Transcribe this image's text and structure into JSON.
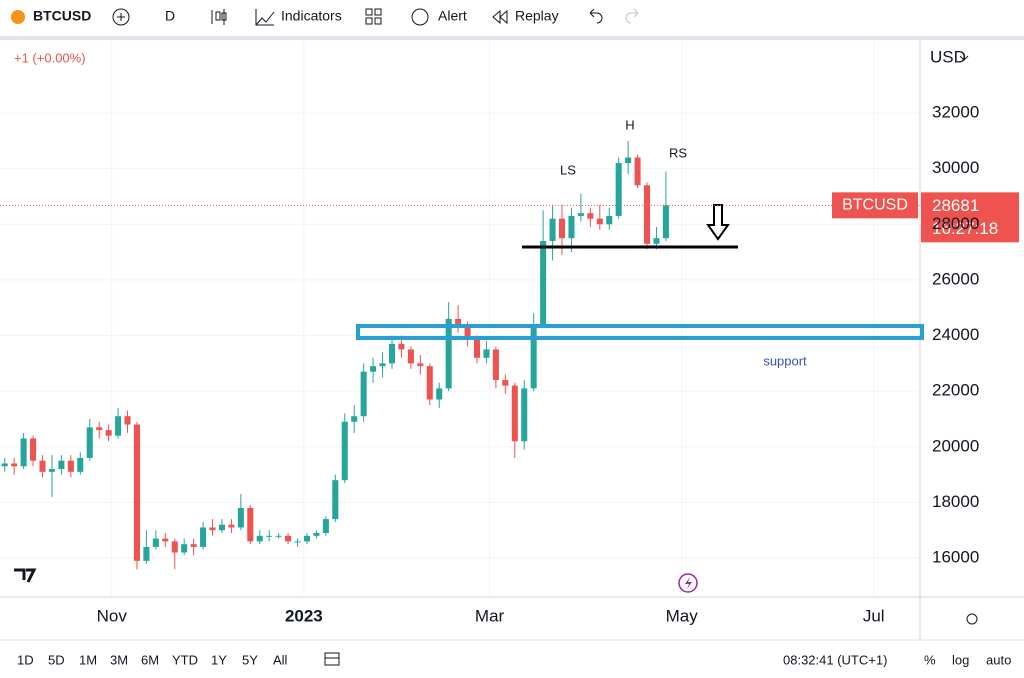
{
  "toolbar": {
    "symbol": "BTCUSD",
    "interval": "D",
    "indicators": "Indicators",
    "alert": "Alert",
    "replay": "Replay"
  },
  "chart_data": {
    "type": "candlestick",
    "change_label": "+1 (+0.00%)",
    "currency": "USD",
    "symbol": "BTCUSD",
    "countdown": "16:27:18",
    "up_color": "#26a69a",
    "down_color": "#ef5350",
    "grid": true,
    "annotations": {
      "left_shoulder": "LS",
      "head": "H",
      "right_shoulder": "RS",
      "support": "support"
    },
    "open": [
      19300,
      19400,
      19300,
      20300,
      19500,
      19100,
      19200,
      19500,
      19100,
      19600,
      20700,
      20600,
      20400,
      21100,
      20800,
      15900,
      16400,
      16700,
      16600,
      16200,
      16500,
      16400,
      17100,
      17000,
      17200,
      17100,
      17800,
      16600,
      16800,
      16800,
      16800,
      16600,
      16600,
      16800,
      16900,
      17400,
      18800,
      20900,
      21100,
      22700,
      22900,
      23000,
      23700,
      23500,
      23000,
      22900,
      21700,
      22100,
      24600,
      24400,
      23900,
      23200,
      23500,
      22400,
      22200,
      20200,
      22100,
      24400,
      27400,
      28200,
      27500,
      28300,
      28400,
      28200,
      28000,
      28300,
      30200,
      30400,
      29400,
      27300,
      27500
    ],
    "high": [
      19600,
      19600,
      20500,
      20400,
      19700,
      19700,
      19700,
      19700,
      19800,
      21000,
      20900,
      20800,
      21400,
      21300,
      20900,
      17000,
      17000,
      16900,
      16700,
      16700,
      16700,
      17300,
      17400,
      17400,
      17400,
      18300,
      17900,
      17000,
      17000,
      16900,
      16900,
      16700,
      16900,
      17000,
      17500,
      19000,
      21200,
      21500,
      23000,
      23200,
      23400,
      24000,
      24000,
      23600,
      23300,
      23000,
      22300,
      25200,
      25100,
      24500,
      24000,
      23800,
      23600,
      22600,
      22300,
      22400,
      24800,
      28500,
      28700,
      28700,
      28600,
      29100,
      28600,
      28700,
      28600,
      30400,
      31000,
      30500,
      29500,
      27900,
      29900
    ],
    "low": [
      19100,
      19000,
      19200,
      19300,
      18900,
      18200,
      19000,
      18900,
      19000,
      19500,
      20300,
      20200,
      20300,
      20500,
      15600,
      15800,
      16300,
      16400,
      15600,
      16100,
      16100,
      16300,
      16800,
      16900,
      16900,
      17000,
      16500,
      16500,
      16600,
      16700,
      16500,
      16400,
      16500,
      16700,
      16800,
      17300,
      18700,
      20500,
      20900,
      22300,
      22500,
      22800,
      23200,
      22800,
      22600,
      21500,
      21400,
      22000,
      24100,
      23600,
      23000,
      23000,
      22100,
      21900,
      19600,
      19900,
      22000,
      24300,
      26700,
      26900,
      27000,
      28100,
      27900,
      27800,
      27800,
      28200,
      29800,
      29300,
      27100,
      27100,
      27400
    ],
    "close": [
      19400,
      19300,
      20300,
      19500,
      19100,
      19200,
      19500,
      19100,
      19600,
      20700,
      20600,
      20400,
      21100,
      20800,
      15900,
      16400,
      16700,
      16600,
      16200,
      16500,
      16400,
      17100,
      17000,
      17200,
      17100,
      17800,
      16600,
      16800,
      16800,
      16800,
      16600,
      16600,
      16800,
      16900,
      17400,
      18800,
      20900,
      21100,
      22700,
      22900,
      23000,
      23700,
      23500,
      23000,
      22900,
      21700,
      22100,
      24600,
      24400,
      23900,
      23200,
      23500,
      22400,
      22200,
      20200,
      22100,
      24400,
      27400,
      28200,
      27500,
      28300,
      28400,
      28200,
      28000,
      28300,
      30200,
      30400,
      29400,
      27300,
      27500,
      28681
    ],
    "xlim": [
      -0.5,
      96.9
    ],
    "xticks": [
      {
        "value": 11.33,
        "label": "Nov"
      },
      {
        "value": 31.67,
        "label": "2023"
      },
      {
        "value": 51.33,
        "label": "Mar"
      },
      {
        "value": 71.67,
        "label": "May"
      },
      {
        "value": 92,
        "label": "Jul"
      }
    ],
    "ylim": [
      14600,
      34625
    ],
    "yticks": [
      16000,
      18000,
      20000,
      22000,
      24000,
      26000,
      28000,
      30000,
      32000
    ]
  },
  "footer": {
    "ranges": [
      "1D",
      "5D",
      "1M",
      "3M",
      "6M",
      "YTD",
      "1Y",
      "5Y",
      "All"
    ],
    "clock": "08:32:41 (UTC+1)",
    "percent": "%",
    "log": "log",
    "auto": "auto"
  }
}
